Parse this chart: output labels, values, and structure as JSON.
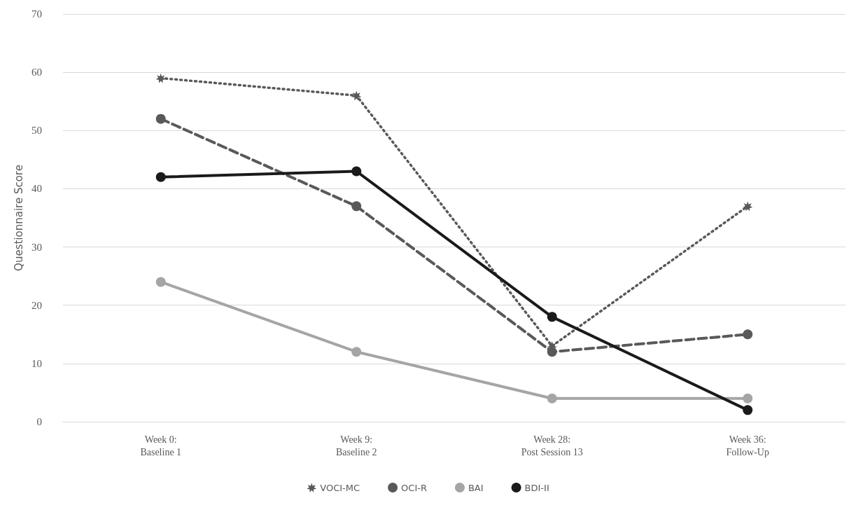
{
  "chart_data": {
    "type": "line",
    "ylabel": "Questionnaire Score",
    "categories": [
      "Week 0:\nBaseline 1",
      "Week 9:\nBaseline 2",
      "Week 28:\nPost Session 13",
      "Week 36:\nFollow-Up"
    ],
    "series": [
      {
        "name": "VOCI-MC",
        "color": "#595959",
        "values": [
          59,
          56,
          13,
          37
        ],
        "marker": "star",
        "line_style": "dotted"
      },
      {
        "name": "OCI-R",
        "color": "#595959",
        "values": [
          52,
          37,
          12,
          15
        ],
        "marker": "circle",
        "line_style": "dashed"
      },
      {
        "name": "BAI",
        "color": "#a5a5a5",
        "values": [
          24,
          12,
          4,
          4
        ],
        "marker": "circle",
        "line_style": "solid"
      },
      {
        "name": "BDI-II",
        "color": "#1a1a1a",
        "values": [
          42,
          43,
          18,
          2
        ],
        "marker": "circle",
        "line_style": "solid"
      }
    ],
    "ylim": [
      0,
      70
    ],
    "yticks": [
      0,
      10,
      20,
      30,
      40,
      50,
      60,
      70
    ],
    "grid": "y",
    "legend": "bottom"
  }
}
